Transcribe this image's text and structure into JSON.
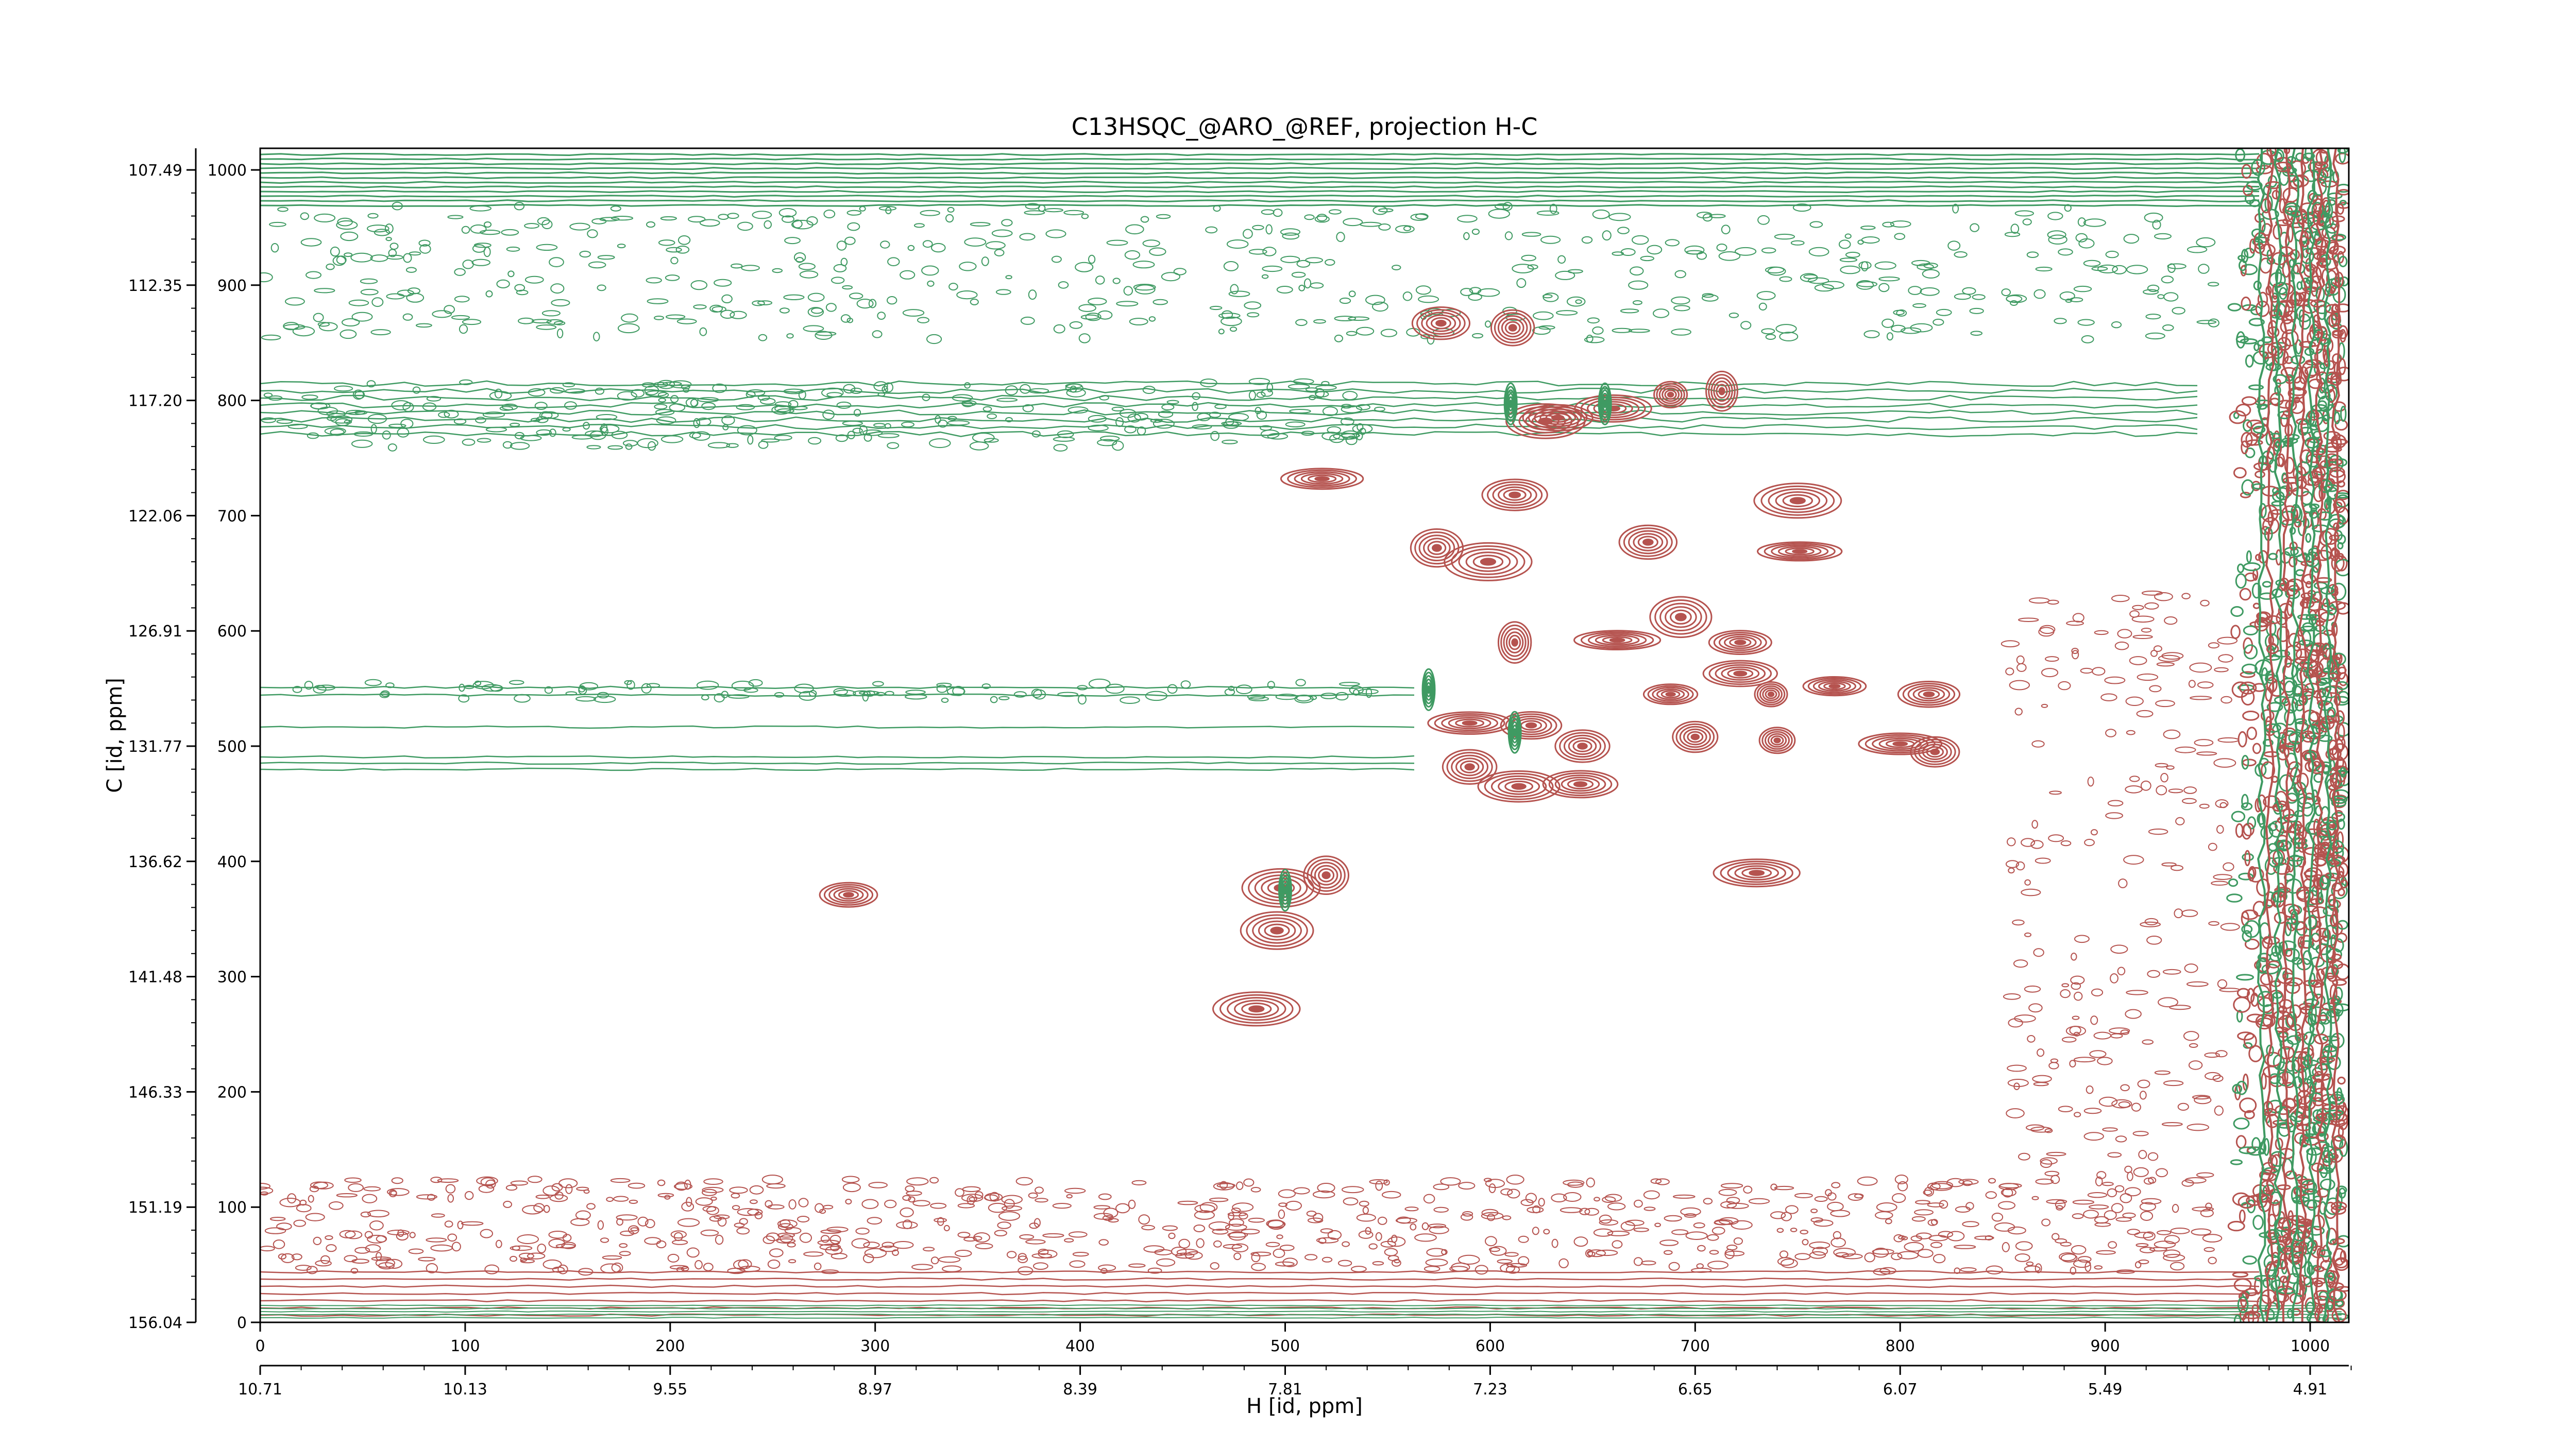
{
  "chart_data": {
    "type": "contour",
    "title": "C13HSQC_@ARO_@REF, projection H-C",
    "xlabel": "H [id, ppm]",
    "ylabel": "C [id, ppm]",
    "x_index_ticks": [
      0,
      100,
      200,
      300,
      400,
      500,
      600,
      700,
      800,
      900,
      1000
    ],
    "x_ppm_ticks": [
      "10.71",
      "10.13",
      "9.55",
      "8.97",
      "8.39",
      "7.81",
      "7.23",
      "6.65",
      "6.07",
      "5.49",
      "4.91"
    ],
    "y_index_ticks": [
      0,
      100,
      200,
      300,
      400,
      500,
      600,
      700,
      800,
      900,
      1000
    ],
    "y_ppm_ticks": [
      "156.04",
      "151.19",
      "146.33",
      "141.48",
      "136.62",
      "131.77",
      "126.91",
      "122.06",
      "117.20",
      "112.35",
      "107.49"
    ],
    "xlim": [
      0,
      1023
    ],
    "ylim": [
      0,
      1023
    ],
    "positive_color": "#b5534f",
    "negative_color": "#3f9a62",
    "peaks": [
      {
        "x": 576,
        "y": 867,
        "sign": "positive"
      },
      {
        "x": 611,
        "y": 863,
        "sign": "positive"
      },
      {
        "x": 627,
        "y": 782,
        "sign": "positive"
      },
      {
        "x": 633,
        "y": 785,
        "sign": "positive"
      },
      {
        "x": 660,
        "y": 793,
        "sign": "positive"
      },
      {
        "x": 688,
        "y": 805,
        "sign": "positive"
      },
      {
        "x": 713,
        "y": 808,
        "sign": "positive"
      },
      {
        "x": 750,
        "y": 713,
        "sign": "positive"
      },
      {
        "x": 751,
        "y": 669,
        "sign": "positive"
      },
      {
        "x": 518,
        "y": 732,
        "sign": "positive"
      },
      {
        "x": 612,
        "y": 718,
        "sign": "positive"
      },
      {
        "x": 574,
        "y": 672,
        "sign": "positive"
      },
      {
        "x": 599,
        "y": 660,
        "sign": "positive"
      },
      {
        "x": 677,
        "y": 677,
        "sign": "positive"
      },
      {
        "x": 612,
        "y": 590,
        "sign": "positive"
      },
      {
        "x": 662,
        "y": 592,
        "sign": "positive"
      },
      {
        "x": 693,
        "y": 612,
        "sign": "positive"
      },
      {
        "x": 722,
        "y": 590,
        "sign": "positive"
      },
      {
        "x": 722,
        "y": 563,
        "sign": "positive"
      },
      {
        "x": 688,
        "y": 545,
        "sign": "positive"
      },
      {
        "x": 737,
        "y": 545,
        "sign": "positive"
      },
      {
        "x": 768,
        "y": 552,
        "sign": "positive"
      },
      {
        "x": 814,
        "y": 545,
        "sign": "positive"
      },
      {
        "x": 590,
        "y": 520,
        "sign": "positive"
      },
      {
        "x": 620,
        "y": 518,
        "sign": "positive"
      },
      {
        "x": 645,
        "y": 500,
        "sign": "positive"
      },
      {
        "x": 700,
        "y": 508,
        "sign": "positive"
      },
      {
        "x": 740,
        "y": 505,
        "sign": "positive"
      },
      {
        "x": 800,
        "y": 502,
        "sign": "positive"
      },
      {
        "x": 817,
        "y": 495,
        "sign": "positive"
      },
      {
        "x": 590,
        "y": 482,
        "sign": "positive"
      },
      {
        "x": 614,
        "y": 465,
        "sign": "positive"
      },
      {
        "x": 644,
        "y": 467,
        "sign": "positive"
      },
      {
        "x": 520,
        "y": 388,
        "sign": "positive"
      },
      {
        "x": 498,
        "y": 377,
        "sign": "positive"
      },
      {
        "x": 496,
        "y": 340,
        "sign": "positive"
      },
      {
        "x": 730,
        "y": 390,
        "sign": "positive"
      },
      {
        "x": 486,
        "y": 272,
        "sign": "positive"
      },
      {
        "x": 287,
        "y": 371,
        "sign": "positive"
      },
      {
        "x": 656,
        "y": 797,
        "sign": "negative"
      },
      {
        "x": 610,
        "y": 797,
        "sign": "negative"
      },
      {
        "x": 570,
        "y": 549,
        "sign": "negative"
      },
      {
        "x": 612,
        "y": 512,
        "sign": "negative"
      },
      {
        "x": 500,
        "y": 375,
        "sign": "negative"
      }
    ]
  }
}
